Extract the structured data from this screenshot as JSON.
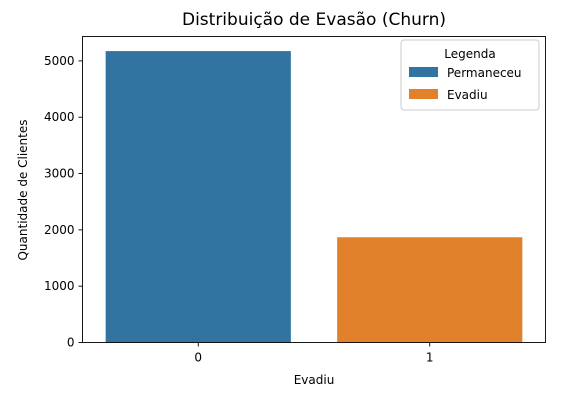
{
  "chart_data": {
    "type": "bar",
    "title": "Distribuição de Evasão (Churn)",
    "xlabel": "Evadiu",
    "ylabel": "Quantidade de Clientes",
    "categories": [
      "0",
      "1"
    ],
    "values": [
      5174,
      1869
    ],
    "colors": [
      "#3274a1",
      "#e1812c"
    ],
    "ylim": [
      0,
      5433
    ],
    "yticks": [
      0,
      1000,
      2000,
      3000,
      4000,
      5000
    ],
    "grid": false,
    "legend": {
      "title": "Legenda",
      "placement": "top-right",
      "entries": [
        {
          "label": "Permaneceu",
          "color": "#3274a1"
        },
        {
          "label": "Evadiu",
          "color": "#e1812c"
        }
      ]
    }
  }
}
